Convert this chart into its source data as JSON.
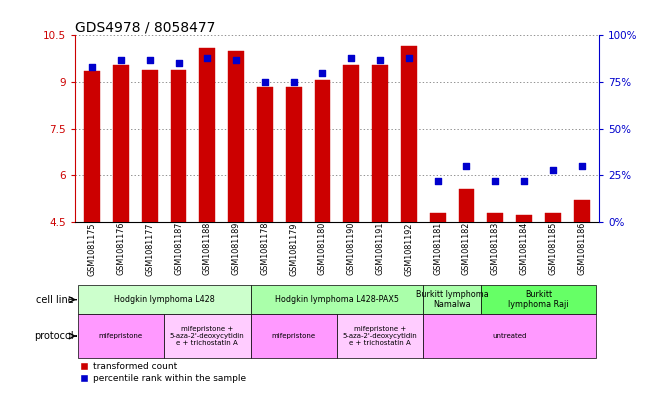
{
  "title": "GDS4978 / 8058477",
  "samples": [
    "GSM1081175",
    "GSM1081176",
    "GSM1081177",
    "GSM1081187",
    "GSM1081188",
    "GSM1081189",
    "GSM1081178",
    "GSM1081179",
    "GSM1081180",
    "GSM1081190",
    "GSM1081191",
    "GSM1081192",
    "GSM1081181",
    "GSM1081182",
    "GSM1081183",
    "GSM1081184",
    "GSM1081185",
    "GSM1081186"
  ],
  "bar_values": [
    9.35,
    9.55,
    9.38,
    9.38,
    10.1,
    10.0,
    8.85,
    8.85,
    9.05,
    9.55,
    9.55,
    10.15,
    4.8,
    5.55,
    4.78,
    4.72,
    4.78,
    5.2
  ],
  "dot_values": [
    83,
    87,
    87,
    85,
    88,
    87,
    75,
    75,
    80,
    88,
    87,
    88,
    22,
    30,
    22,
    22,
    28,
    30
  ],
  "bar_bottom": 4.5,
  "bar_color": "#cc0000",
  "dot_color": "#0000cc",
  "ylim_left": [
    4.5,
    10.5
  ],
  "ylim_right": [
    0,
    100
  ],
  "yticks_left": [
    4.5,
    6.0,
    7.5,
    9.0,
    10.5
  ],
  "yticks_right": [
    0,
    25,
    50,
    75,
    100
  ],
  "ytick_labels_left": [
    "4.5",
    "6",
    "7.5",
    "9",
    "10.5"
  ],
  "ytick_labels_right": [
    "0%",
    "25%",
    "50%",
    "75%",
    "100%"
  ],
  "cell_line_groups": [
    {
      "label": "Hodgkin lymphoma L428",
      "start": 0,
      "end": 6,
      "color": "#ccffcc"
    },
    {
      "label": "Hodgkin lymphoma L428-PAX5",
      "start": 6,
      "end": 12,
      "color": "#aaffaa"
    },
    {
      "label": "Burkitt lymphoma\nNamalwa",
      "start": 12,
      "end": 14,
      "color": "#aaffaa"
    },
    {
      "label": "Burkitt\nlymphoma Raji",
      "start": 14,
      "end": 18,
      "color": "#66ff66"
    }
  ],
  "protocol_groups": [
    {
      "label": "mifepristone",
      "start": 0,
      "end": 3,
      "color": "#ff99ff"
    },
    {
      "label": "mifepristone +\n5-aza-2'-deoxycytidin\ne + trichostatin A",
      "start": 3,
      "end": 6,
      "color": "#ffccff"
    },
    {
      "label": "mifepristone",
      "start": 6,
      "end": 9,
      "color": "#ff99ff"
    },
    {
      "label": "mifepristone +\n5-aza-2'-deoxycytidin\ne + trichostatin A",
      "start": 9,
      "end": 12,
      "color": "#ffccff"
    },
    {
      "label": "untreated",
      "start": 12,
      "end": 18,
      "color": "#ff99ff"
    }
  ],
  "legend_items": [
    {
      "label": "transformed count",
      "color": "#cc0000"
    },
    {
      "label": "percentile rank within the sample",
      "color": "#0000cc"
    }
  ],
  "cell_line_label": "cell line",
  "protocol_label": "protocol",
  "background_color": "#ffffff",
  "grid_color": "#666666",
  "title_fontsize": 10,
  "tick_fontsize": 7.5
}
